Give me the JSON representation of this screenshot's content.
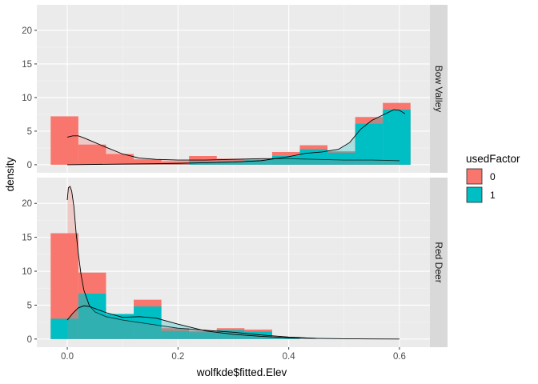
{
  "chart_data": {
    "type": "bar",
    "subtype": "faceted histogram with density overlays",
    "xlabel": "wolfkde$fitted.Elev",
    "ylabel": "density",
    "xlim": [
      -0.055,
      0.655
    ],
    "ylim": [
      -1.2,
      23.8
    ],
    "x_ticks": [
      0.0,
      0.2,
      0.4,
      0.6
    ],
    "x_tick_labels": [
      "0.0",
      "0.2",
      "0.4",
      "0.6"
    ],
    "y_ticks": [
      0,
      5,
      10,
      15,
      20
    ],
    "y_tick_labels": [
      "0",
      "5",
      "10",
      "15",
      "20"
    ],
    "grid": true,
    "legend": {
      "title": "usedFactor",
      "position": "right",
      "entries": [
        {
          "label": "0",
          "color": "#F8766D"
        },
        {
          "label": "1",
          "color": "#00BFC4"
        }
      ]
    },
    "colors": {
      "0": "#F8766D",
      "1": "#00BFC4",
      "panel_bg": "#EBEBEB",
      "strip_bg": "#D9D9D9"
    },
    "bin_edges": [
      -0.03,
      0.02,
      0.07,
      0.12,
      0.17,
      0.22,
      0.27,
      0.32,
      0.37,
      0.42,
      0.47,
      0.52,
      0.57,
      0.62
    ],
    "facets": [
      {
        "label": "Bow Valley",
        "series": [
          {
            "name": "0",
            "values": [
              7.2,
              3.0,
              1.6,
              0.8,
              0.5,
              1.3,
              0.9,
              0.8,
              1.9,
              2.9,
              2.0,
              7.1,
              9.2
            ]
          },
          {
            "name": "1",
            "values": [
              0.0,
              0.0,
              0.0,
              0.0,
              0.0,
              0.5,
              0.6,
              0.7,
              1.3,
              2.3,
              1.8,
              6.1,
              8.2
            ]
          }
        ],
        "density": [
          {
            "name": "0",
            "x": [
              0.0,
              0.01,
              0.02,
              0.03,
              0.05,
              0.07,
              0.1,
              0.13,
              0.16,
              0.2,
              0.25,
              0.3,
              0.35,
              0.4,
              0.45,
              0.5,
              0.55,
              0.6
            ],
            "y": [
              4.1,
              4.3,
              4.3,
              4.0,
              3.3,
              2.6,
              1.6,
              1.0,
              0.8,
              0.7,
              0.7,
              0.8,
              0.9,
              0.9,
              0.8,
              0.7,
              0.7,
              0.6
            ]
          },
          {
            "name": "1",
            "x": [
              0.0,
              0.05,
              0.1,
              0.15,
              0.2,
              0.25,
              0.3,
              0.35,
              0.4,
              0.43,
              0.46,
              0.49,
              0.51,
              0.53,
              0.55,
              0.57,
              0.59,
              0.6,
              0.61
            ],
            "y": [
              0.0,
              0.05,
              0.1,
              0.15,
              0.2,
              0.3,
              0.4,
              0.6,
              1.2,
              1.7,
              1.9,
              2.3,
              3.3,
              5.3,
              6.6,
              7.4,
              8.2,
              8.1,
              7.6
            ]
          }
        ]
      },
      {
        "label": "Red Deer",
        "series": [
          {
            "name": "0",
            "values": [
              15.6,
              9.8,
              3.3,
              5.8,
              1.6,
              1.2,
              1.6,
              1.4,
              0.3,
              0.0,
              0.0,
              0.0,
              0.0
            ]
          },
          {
            "name": "1",
            "values": [
              3.0,
              6.7,
              3.7,
              4.8,
              1.2,
              1.0,
              1.3,
              1.1,
              0.2,
              0.0,
              0.0,
              0.0,
              0.0
            ]
          }
        ],
        "density": [
          {
            "name": "0",
            "x": [
              0.0,
              0.002,
              0.005,
              0.008,
              0.012,
              0.016,
              0.02,
              0.025,
              0.03,
              0.04,
              0.05,
              0.07,
              0.1,
              0.15,
              0.2,
              0.25,
              0.3,
              0.35,
              0.4,
              0.45
            ],
            "y": [
              20.5,
              22.3,
              22.5,
              21.8,
              19.5,
              15.6,
              12.6,
              9.4,
              7.2,
              4.9,
              4.0,
              3.3,
              2.8,
              2.2,
              1.6,
              1.3,
              1.0,
              0.6,
              0.3,
              0.1
            ]
          },
          {
            "name": "1",
            "x": [
              0.0,
              0.01,
              0.02,
              0.03,
              0.04,
              0.05,
              0.07,
              0.1,
              0.13,
              0.16,
              0.2,
              0.25,
              0.3,
              0.35,
              0.4,
              0.45,
              0.5,
              0.55,
              0.6
            ],
            "y": [
              2.8,
              3.8,
              4.6,
              4.9,
              4.8,
              4.5,
              3.9,
              3.2,
              3.3,
              3.1,
              2.2,
              1.2,
              0.7,
              0.4,
              0.2,
              0.1,
              0.05,
              0.02,
              0.0
            ]
          }
        ]
      }
    ]
  }
}
